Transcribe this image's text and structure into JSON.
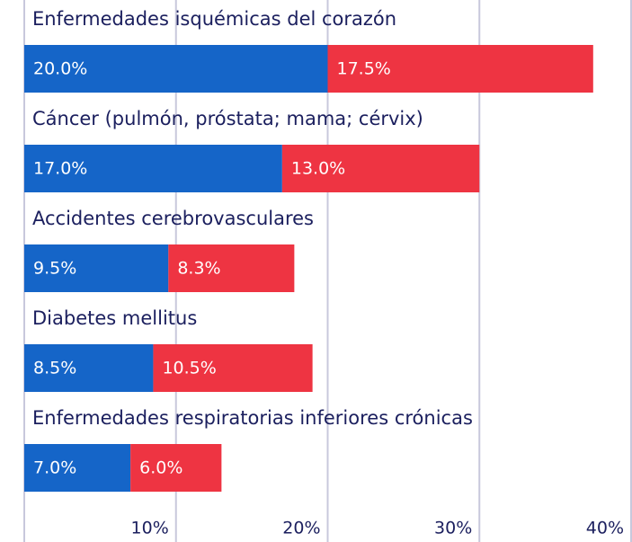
{
  "chart_data": {
    "type": "stacked-barh",
    "categories": [
      "Enfermedades isquémicas del corazón",
      "Cáncer (pulmón, próstata; mama; cérvix)",
      "Accidentes cerebrovasculares",
      "Diabetes mellitus",
      "Enfermedades respiratorias inferiores crónicas"
    ],
    "series": [
      {
        "color": "#1565c8",
        "values": [
          20.0,
          17.0,
          9.5,
          8.5,
          7.0
        ],
        "value_labels": [
          "20.0%",
          "17.0%",
          "9.5%",
          "8.5%",
          "7.0%"
        ]
      },
      {
        "color": "#ee3442",
        "values": [
          17.5,
          13.0,
          8.3,
          10.5,
          6.0
        ],
        "value_labels": [
          "17.5%",
          "13.0%",
          "8.3%",
          "10.5%",
          "6.0%"
        ]
      }
    ],
    "xlim": [
      0,
      40
    ],
    "xticks": [
      {
        "value": 10,
        "label": "10%"
      },
      {
        "value": 20,
        "label": "20%"
      },
      {
        "value": 30,
        "label": "30%"
      },
      {
        "value": 40,
        "label": "40%"
      }
    ],
    "grid": true
  }
}
